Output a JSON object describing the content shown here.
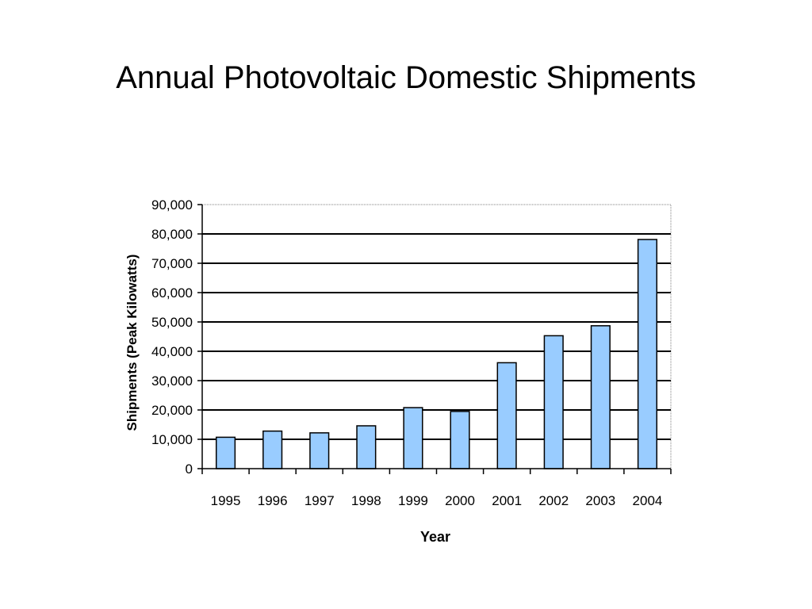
{
  "slide": {
    "title": "Annual Photovoltaic Domestic Shipments"
  },
  "chart_data": {
    "type": "bar",
    "title": "",
    "xlabel": "Year",
    "ylabel": "Shipments (Peak Kilowatts)",
    "categories": [
      "1995",
      "1996",
      "1997",
      "1998",
      "1999",
      "2000",
      "2001",
      "2002",
      "2003",
      "2004"
    ],
    "values": [
      10700,
      12800,
      12200,
      14600,
      20800,
      19500,
      36100,
      45300,
      48700,
      78100
    ],
    "ylim": [
      0,
      90000
    ],
    "yticks": [
      "0",
      "10,000",
      "20,000",
      "30,000",
      "40,000",
      "50,000",
      "60,000",
      "70,000",
      "80,000",
      "90,000"
    ],
    "grid": true,
    "legend": "none",
    "colors": {
      "bar_fill": "#99ccff",
      "bar_stroke": "#000000",
      "gridline": "#000000"
    }
  }
}
